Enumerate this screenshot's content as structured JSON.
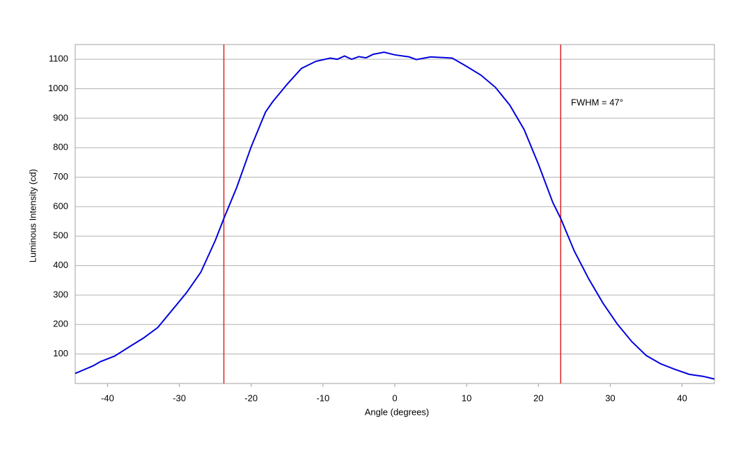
{
  "chart_data": {
    "type": "line",
    "x_label": "Angle (degrees)",
    "y_label": "Luminous Intensity (cd)",
    "annotation": "FWHM = 47°",
    "x": [
      -44.5,
      -42,
      -41,
      -39,
      -37,
      -35,
      -33,
      -31,
      -29,
      -27,
      -25,
      -23.8,
      -22,
      -20,
      -18,
      -17,
      -15,
      -13,
      -11,
      -9,
      -8,
      -7,
      -6,
      -5,
      -4,
      -3,
      -1.5,
      0,
      2,
      3,
      5,
      8,
      10,
      12,
      14,
      16,
      18,
      20,
      22,
      23.1,
      25,
      27,
      29,
      31,
      33,
      35,
      37,
      39,
      41,
      43,
      44.5
    ],
    "series": [
      {
        "color": "#0000dd",
        "values": [
          34,
          60,
          74,
          93,
          124,
          154,
          190,
          249,
          308,
          378,
          485,
          560,
          666,
          803,
          921,
          956,
          1015,
          1069,
          1093,
          1104,
          1100,
          1111,
          1100,
          1109,
          1105,
          1117,
          1124,
          1115,
          1108,
          1099,
          1108,
          1104,
          1076,
          1046,
          1005,
          945,
          862,
          744,
          614,
          560,
          449,
          355,
          272,
          201,
          142,
          95,
          67,
          48,
          31,
          24,
          15
        ]
      }
    ],
    "vlines": [
      -23.8,
      23.1
    ],
    "vline_color": "#dd2222",
    "xlim": [
      -44.5,
      44.5
    ],
    "xticks": [
      -40,
      -30,
      -20,
      -10,
      0,
      10,
      20,
      30,
      40
    ],
    "ylim": [
      0,
      1150
    ],
    "yticks": [
      100,
      200,
      300,
      400,
      500,
      600,
      700,
      800,
      900,
      1000,
      1100
    ],
    "grid": true
  }
}
